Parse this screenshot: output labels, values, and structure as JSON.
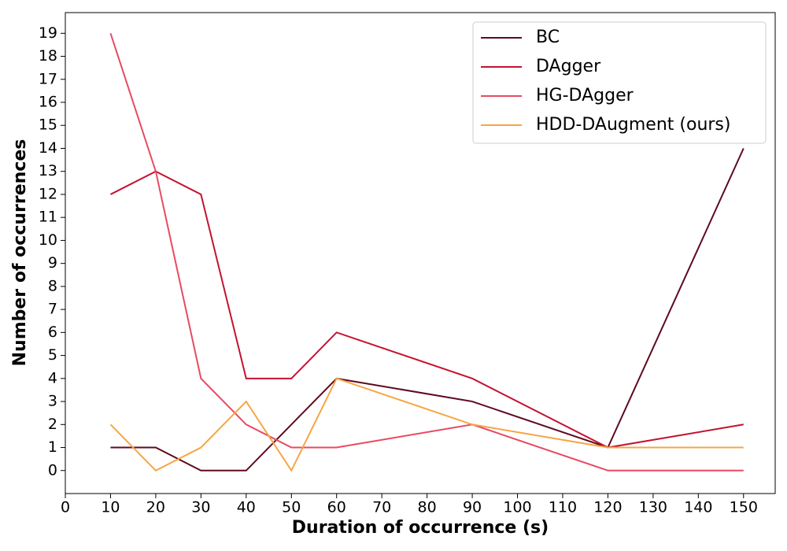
{
  "chart_data": {
    "type": "line",
    "xlabel": "Duration of occurrence (s)",
    "ylabel": "Number of occurrences",
    "x": [
      10,
      20,
      30,
      40,
      50,
      60,
      90,
      120,
      150
    ],
    "series": [
      {
        "name": "BC",
        "color": "#5e0a1f",
        "values": [
          1,
          1,
          0,
          0,
          2,
          4,
          3,
          1,
          14
        ]
      },
      {
        "name": "DAgger",
        "color": "#c41230",
        "values": [
          12,
          13,
          12,
          4,
          4,
          6,
          4,
          1,
          2
        ]
      },
      {
        "name": "HG-DAgger",
        "color": "#e84a62",
        "values": [
          19,
          13,
          4,
          2,
          1,
          1,
          2,
          0,
          0
        ]
      },
      {
        "name": "HDD-DAugment (ours)",
        "color": "#f7a543",
        "values": [
          2,
          0,
          1,
          3,
          0,
          4,
          2,
          1,
          1
        ]
      }
    ],
    "xlim": [
      0,
      157
    ],
    "xticks": [
      0,
      10,
      20,
      30,
      40,
      50,
      60,
      70,
      80,
      90,
      100,
      110,
      120,
      130,
      140,
      150
    ],
    "ylim": [
      -1,
      19.9
    ],
    "yticks": [
      0,
      1,
      2,
      3,
      4,
      5,
      6,
      7,
      8,
      9,
      10,
      11,
      12,
      13,
      14,
      15,
      16,
      17,
      18,
      19
    ],
    "legend": "upper right"
  }
}
